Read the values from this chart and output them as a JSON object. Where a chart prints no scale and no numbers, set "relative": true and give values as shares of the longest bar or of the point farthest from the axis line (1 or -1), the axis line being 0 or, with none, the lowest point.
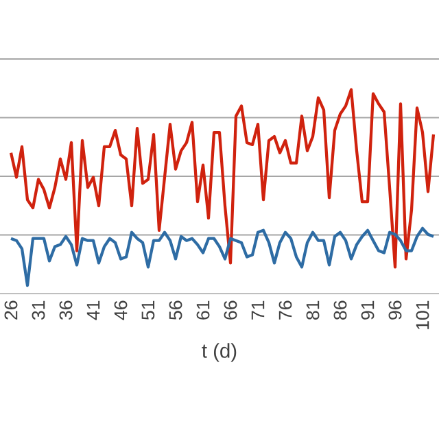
{
  "chart_data": {
    "type": "line",
    "xlabel": "t (d)",
    "relative": true,
    "grid": "y",
    "marker": "none",
    "line_style": "solid",
    "x": [
      26,
      27,
      28,
      29,
      30,
      31,
      32,
      33,
      34,
      35,
      36,
      37,
      38,
      39,
      40,
      41,
      42,
      43,
      44,
      45,
      46,
      47,
      48,
      49,
      50,
      51,
      52,
      53,
      54,
      55,
      56,
      57,
      58,
      59,
      60,
      61,
      62,
      63,
      64,
      65,
      66,
      67,
      68,
      69,
      70,
      71,
      72,
      73,
      74,
      75,
      76,
      77,
      78,
      79,
      80,
      81,
      82,
      83,
      84,
      85,
      86,
      87,
      88,
      89,
      90,
      91,
      92,
      93,
      94,
      95,
      96,
      97,
      98,
      99,
      100,
      101,
      102,
      103
    ],
    "xlim": [
      24,
      104
    ],
    "xticks": [
      26,
      31,
      36,
      41,
      46,
      51,
      56,
      61,
      66,
      71,
      76,
      81,
      86,
      91,
      96,
      101
    ],
    "series": [
      {
        "color": "#d0220e",
        "values": [
          0.69,
          0.57,
          0.72,
          0.46,
          0.42,
          0.56,
          0.51,
          0.42,
          0.52,
          0.66,
          0.56,
          0.74,
          0.21,
          0.75,
          0.52,
          0.57,
          0.43,
          0.72,
          0.72,
          0.8,
          0.68,
          0.66,
          0.43,
          0.81,
          0.54,
          0.56,
          0.78,
          0.31,
          0.57,
          0.83,
          0.61,
          0.7,
          0.74,
          0.84,
          0.45,
          0.63,
          0.37,
          0.79,
          0.79,
          0.43,
          0.15,
          0.87,
          0.92,
          0.74,
          0.73,
          0.83,
          0.46,
          0.75,
          0.77,
          0.69,
          0.75,
          0.64,
          0.64,
          0.87,
          0.7,
          0.77,
          0.96,
          0.9,
          0.47,
          0.8,
          0.88,
          0.92,
          1.0,
          0.7,
          0.45,
          0.45,
          0.98,
          0.93,
          0.89,
          0.52,
          0.13,
          0.93,
          0.17,
          0.41,
          0.91,
          0.79,
          0.5,
          0.78
        ]
      },
      {
        "color": "#2e6ca4",
        "values": [
          0.27,
          0.26,
          0.22,
          0.04,
          0.27,
          0.27,
          0.27,
          0.16,
          0.23,
          0.24,
          0.28,
          0.24,
          0.14,
          0.27,
          0.26,
          0.26,
          0.15,
          0.23,
          0.27,
          0.25,
          0.17,
          0.18,
          0.3,
          0.27,
          0.25,
          0.13,
          0.26,
          0.26,
          0.3,
          0.26,
          0.17,
          0.28,
          0.26,
          0.27,
          0.24,
          0.2,
          0.27,
          0.27,
          0.23,
          0.17,
          0.27,
          0.26,
          0.25,
          0.18,
          0.19,
          0.3,
          0.31,
          0.25,
          0.15,
          0.25,
          0.3,
          0.27,
          0.18,
          0.13,
          0.25,
          0.3,
          0.26,
          0.26,
          0.14,
          0.28,
          0.3,
          0.26,
          0.17,
          0.24,
          0.28,
          0.31,
          0.26,
          0.21,
          0.2,
          0.3,
          0.29,
          0.26,
          0.21,
          0.21,
          0.28,
          0.32,
          0.29,
          0.28
        ]
      }
    ]
  }
}
